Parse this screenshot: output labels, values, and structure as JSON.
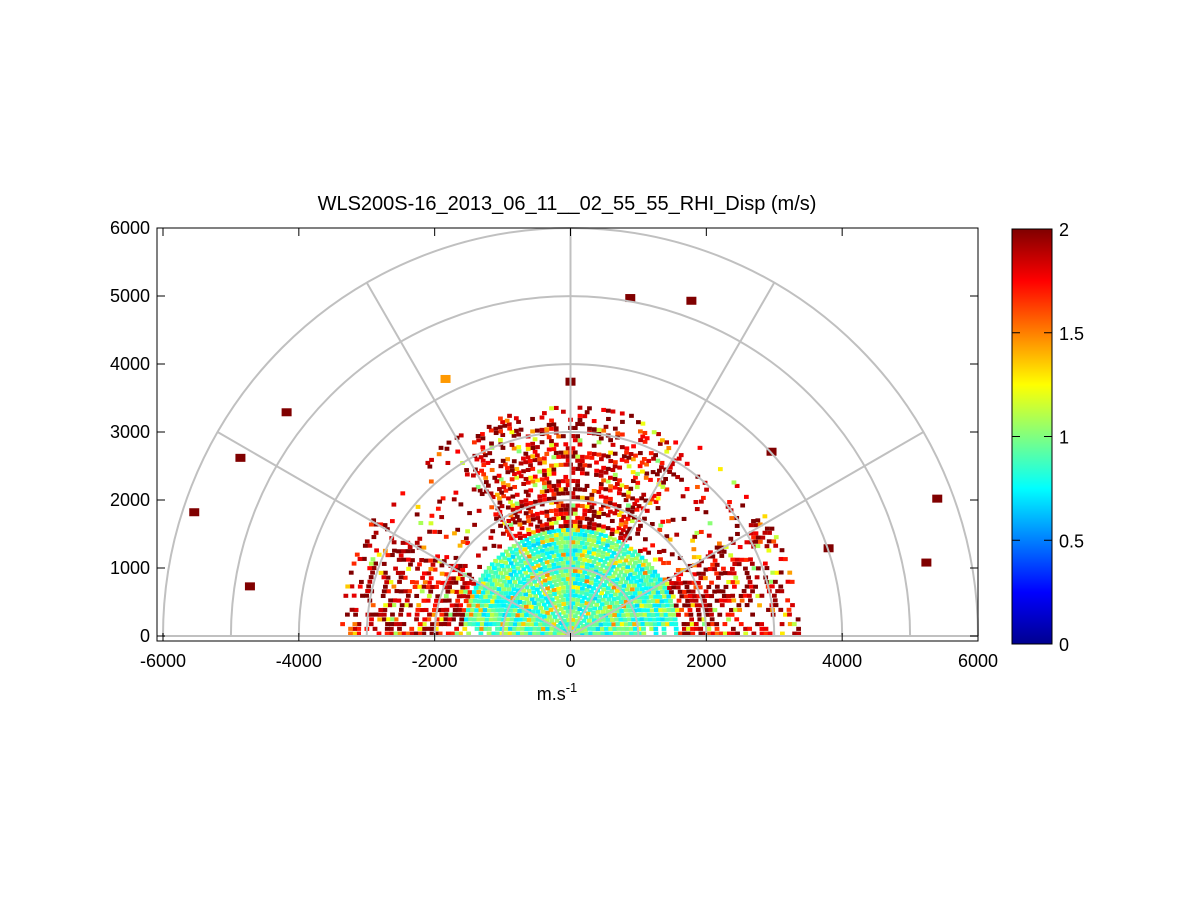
{
  "chart_data": {
    "type": "heatmap",
    "subtype": "polar RHI scan",
    "title": "WLS200S-16_2013_06_11__02_55_55_RHI_Disp (m/s)",
    "xlabel": "m.s",
    "xlabel_superscript": "-1",
    "ylabel": "",
    "xlim": [
      -6000,
      6000
    ],
    "ylim": [
      0,
      6000
    ],
    "x_ticks": [
      "-6000",
      "-4000",
      "-2000",
      "0",
      "2000",
      "4000",
      "6000"
    ],
    "y_ticks": [
      "0",
      "1000",
      "2000",
      "3000",
      "4000",
      "5000",
      "6000"
    ],
    "polar_grid": {
      "range_rings": [
        1000,
        2000,
        3000,
        4000,
        5000,
        6000
      ],
      "spoke_angles_deg": [
        0,
        30,
        60,
        90,
        120,
        150,
        180
      ],
      "grid_color": "#c0c0c0"
    },
    "colorbar": {
      "min": 0,
      "max": 2,
      "ticks": [
        "0",
        "0.5",
        "1",
        "1.5",
        "2"
      ],
      "colormap": "jet"
    },
    "data_description": {
      "near_field_range_max": 1600,
      "near_field_typical_value": 0.9,
      "mid_field_range": [
        1600,
        3400
      ],
      "mid_field_typical_value": 1.8,
      "scan_elevation_deg": [
        0,
        180
      ]
    },
    "sample_cells": [
      {
        "x": 880,
        "y": 4970,
        "v": 2.0
      },
      {
        "x": 1780,
        "y": 4930,
        "v": 2.0
      },
      {
        "x": -1840,
        "y": 3780,
        "v": 1.45
      },
      {
        "x": 0,
        "y": 3740,
        "v": 2.0
      },
      {
        "x": -4180,
        "y": 3290,
        "v": 2.0
      },
      {
        "x": -4860,
        "y": 2620,
        "v": 2.0
      },
      {
        "x": -5540,
        "y": 1820,
        "v": 2.0
      },
      {
        "x": -4720,
        "y": 730,
        "v": 2.0
      },
      {
        "x": 5400,
        "y": 2020,
        "v": 2.0
      },
      {
        "x": 5240,
        "y": 1080,
        "v": 2.0
      },
      {
        "x": 2960,
        "y": 2710,
        "v": 2.0
      },
      {
        "x": 3800,
        "y": 1290,
        "v": 2.0
      }
    ]
  }
}
